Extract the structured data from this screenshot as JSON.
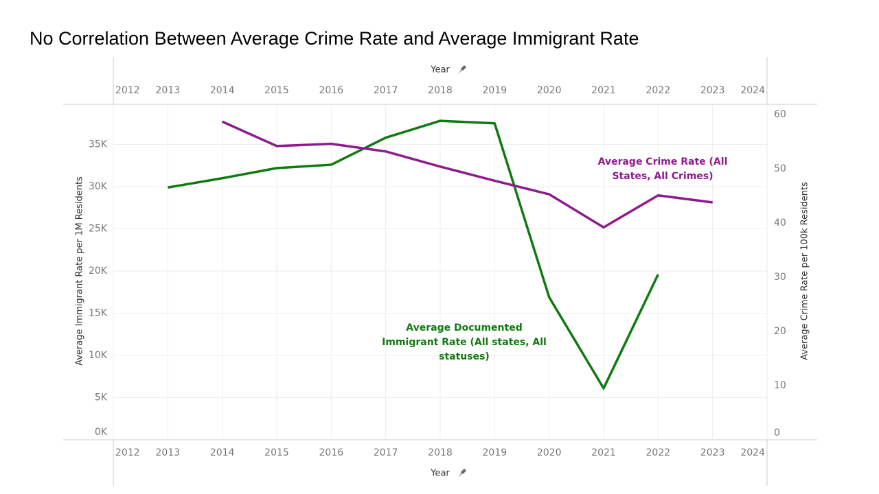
{
  "chart_data": {
    "type": "line",
    "title": "No Correlation Between Average Crime Rate and Average Immigrant Rate",
    "x_label": "Year",
    "y_label": "Average Immigrant Rate per 1M Residents",
    "y2_label": "Average Crime Rate per 100k Residents",
    "x": [
      2012,
      2013,
      2014,
      2015,
      2016,
      2017,
      2018,
      2019,
      2020,
      2021,
      2022,
      2023,
      2024
    ],
    "xlim": [
      2012,
      2024
    ],
    "xticks": [
      2012,
      2013,
      2014,
      2015,
      2016,
      2017,
      2018,
      2019,
      2020,
      2021,
      2022,
      2023,
      2024
    ],
    "ylim": [
      0,
      39760
    ],
    "yticks": [
      {
        "value": 0,
        "label": "0K"
      },
      {
        "value": 5000,
        "label": "5K"
      },
      {
        "value": 10000,
        "label": "10K"
      },
      {
        "value": 15000,
        "label": "15K"
      },
      {
        "value": 20000,
        "label": "20K"
      },
      {
        "value": 25000,
        "label": "25K"
      },
      {
        "value": 30000,
        "label": "30K"
      },
      {
        "value": 35000,
        "label": "35K"
      }
    ],
    "y2lim": [
      0,
      61.9
    ],
    "y2ticks": [
      0,
      10,
      20,
      30,
      40,
      50,
      60
    ],
    "grid": true,
    "series": [
      {
        "color": "#0f7a0f",
        "annotation": [
          "Average Documented",
          "Immigrant Rate (All states, All",
          "statuses)"
        ],
        "values": [
          null,
          29900,
          31000,
          32200,
          32600,
          35800,
          37800,
          37500,
          16900,
          6100,
          19600,
          null,
          null
        ]
      },
      {
        "color": "#8e1b8e",
        "axis": "y2",
        "annotation": [
          "Average Crime Rate (All",
          "States, All Crimes)"
        ],
        "values": [
          null,
          null,
          58.7,
          54.2,
          54.6,
          53.2,
          50.4,
          47.8,
          45.3,
          39.2,
          45.1,
          43.8,
          null
        ]
      }
    ]
  }
}
